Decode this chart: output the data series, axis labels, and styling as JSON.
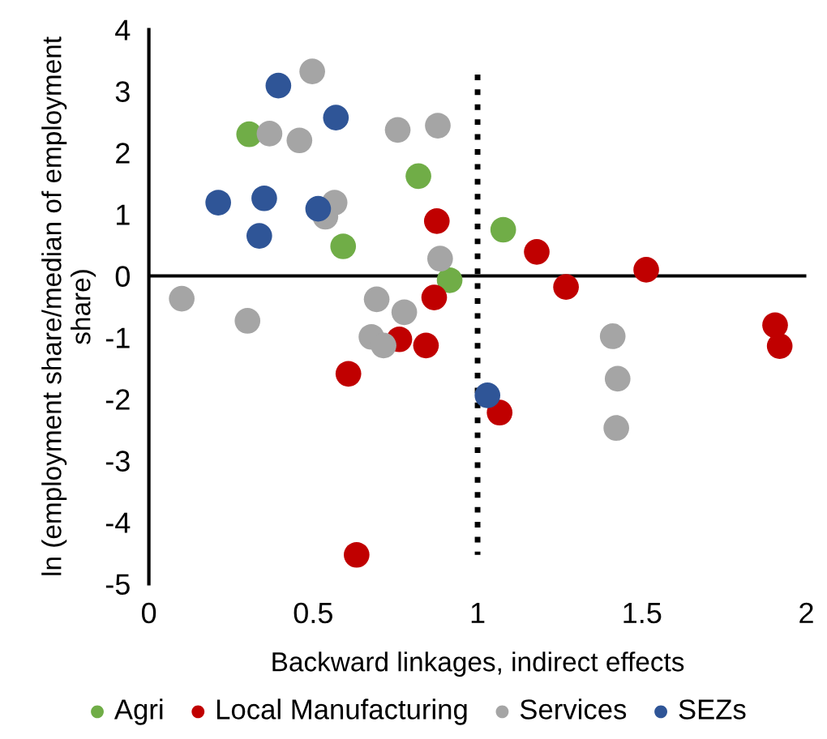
{
  "chart_data": {
    "type": "scatter",
    "xlabel": "Backward linkages, indirect effects",
    "ylabel": "ln (employment share/median of employment share)",
    "xlim": [
      0,
      2
    ],
    "xticks": [
      0,
      0.5,
      1,
      1.5,
      2
    ],
    "ylim": [
      -5,
      4
    ],
    "yticks": [
      -5,
      -4,
      -3,
      -2,
      -1,
      0,
      1,
      2,
      3,
      4
    ],
    "grid": false,
    "legend": "bottom",
    "marker": "circle",
    "ref_lines": [
      {
        "axis": "y",
        "value": 0,
        "color": "#000000",
        "line_style": "solid"
      }
    ],
    "series": [
      {
        "name": "Agri",
        "color": "#70ad47",
        "x": [
          0.305,
          0.82,
          0.591,
          0.915,
          1.078
        ],
        "values": [
          2.3,
          1.62,
          0.48,
          -0.07,
          0.75
        ]
      },
      {
        "name": "Local Manufacturing",
        "color": "#c00000",
        "x": [
          0.876,
          1.18,
          0.868,
          0.762,
          0.843,
          0.607,
          1.067,
          0.632,
          1.269,
          1.513,
          1.905,
          1.919
        ],
        "values": [
          0.89,
          0.39,
          -0.35,
          -1.03,
          -1.13,
          -1.59,
          -2.22,
          -4.53,
          -0.18,
          0.1,
          -0.8,
          -1.14
        ]
      },
      {
        "name": "Services",
        "color": "#a5a5a5",
        "x": [
          0.497,
          0.367,
          0.458,
          0.757,
          0.879,
          0.565,
          0.537,
          0.886,
          0.1,
          0.3,
          0.693,
          0.777,
          0.677,
          0.714,
          1.411,
          1.426,
          1.422
        ],
        "values": [
          3.32,
          2.31,
          2.2,
          2.37,
          2.44,
          1.19,
          0.96,
          0.28,
          -0.37,
          -0.73,
          -0.38,
          -0.59,
          -0.99,
          -1.13,
          -0.98,
          -1.67,
          -2.47
        ]
      },
      {
        "name": "SEZs",
        "color": "#2f5597",
        "x": [
          0.394,
          0.569,
          0.211,
          0.351,
          0.515,
          0.336,
          1.03
        ],
        "values": [
          3.09,
          2.57,
          1.19,
          1.26,
          1.09,
          0.65,
          -1.94
        ]
      },
      {
        "type": "line",
        "color": "#000000",
        "line_style": "dotted",
        "marker": "none",
        "x": [
          1,
          1
        ],
        "values": [
          3.27,
          -4.53
        ]
      }
    ]
  }
}
